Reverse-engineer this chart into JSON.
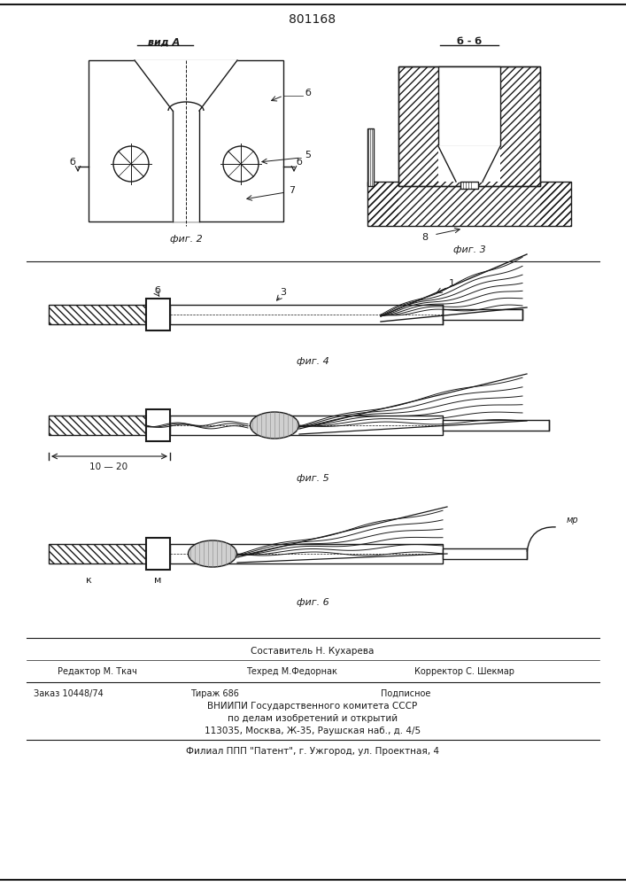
{
  "patent_number": "801168",
  "bg_color": "#ffffff",
  "line_color": "#1a1a1a",
  "fig2_label": "вид А",
  "fig3_label": "б - б",
  "caption2": "фиг. 2",
  "caption3": "фиг. 3",
  "caption4": "фиг. 4",
  "caption5": "фиг. 5",
  "caption6": "фиг. 6",
  "label_b": "б",
  "label_5": "5",
  "label_7": "7",
  "label_3": "3",
  "label_1": "1",
  "label_8": "8",
  "label_k": "к",
  "label_m": "м",
  "label_mr": "мр",
  "label_1020": "10 — 20",
  "footer_line1": "Составитель Н. Кухарева",
  "footer_line2_left": "Редактор М. Ткач",
  "footer_line2_mid": "Техред М.Федорнак",
  "footer_line2_right": "Корректор С. Шекмар",
  "footer_line3_left": "Заказ 10448/74",
  "footer_line3_mid": "Тираж 686",
  "footer_line3_right": "Подписное",
  "footer_line4": "ВНИИПИ Государственного комитета СССР",
  "footer_line5": "по делам изобретений и открытий",
  "footer_line6": "113035, Москва, Ж-35, Раушская наб., д. 4/5",
  "footer_line7": "Филиал ППП \"Патент\", г. Ужгород, ул. Проектная, 4"
}
